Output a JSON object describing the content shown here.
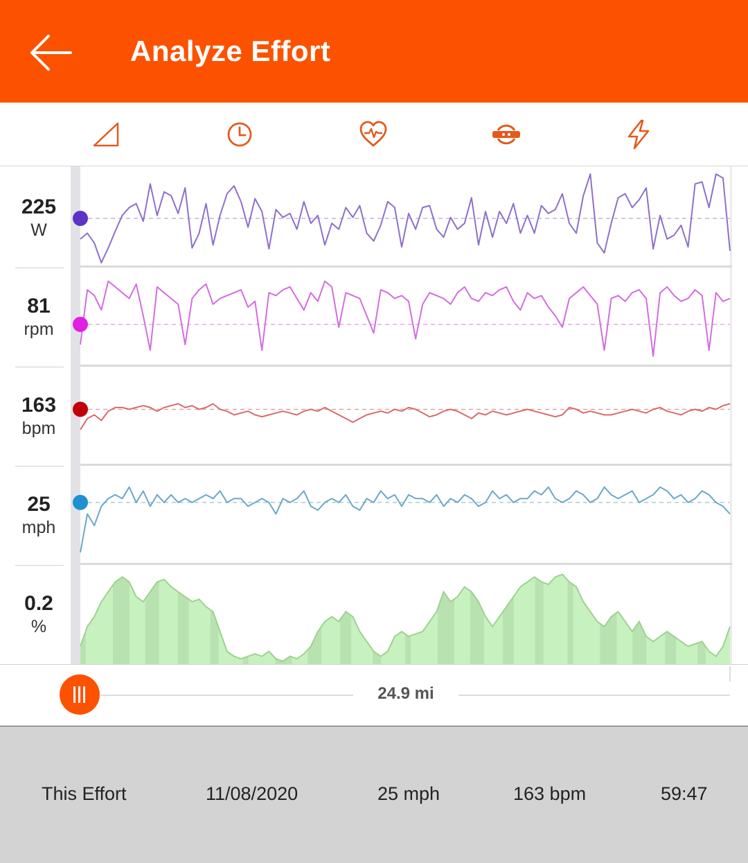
{
  "header": {
    "title": "Analyze Effort",
    "back_icon": "arrow-left-icon",
    "background_color": "#FC5200"
  },
  "tabs": [
    {
      "icon": "elevation-icon"
    },
    {
      "icon": "clock-icon"
    },
    {
      "icon": "heart-rate-icon"
    },
    {
      "icon": "cadence-icon"
    },
    {
      "icon": "power-icon"
    }
  ],
  "metrics": [
    {
      "value": "225",
      "unit": "W",
      "color": "#8E6FC9",
      "marker_color": "#5B33C7"
    },
    {
      "value": "81",
      "unit": "rpm",
      "color": "#D36CE0",
      "marker_color": "#E020E0"
    },
    {
      "value": "163",
      "unit": "bpm",
      "color": "#D96A6A",
      "marker_color": "#C0000A"
    },
    {
      "value": "25",
      "unit": "mph",
      "color": "#6AA8C8",
      "marker_color": "#1F90D0"
    },
    {
      "value": "0.2",
      "unit": "%",
      "color": "#A8D9A0",
      "marker_color": "#9BD28F"
    }
  ],
  "scrubber": {
    "distance_label": "24.9 mi",
    "handle_icon": "grip-handle-icon"
  },
  "footer": {
    "effort_label": "This Effort",
    "date": "11/08/2020",
    "speed": "25 mph",
    "heart_rate": "163 bpm",
    "time": "59:47"
  },
  "chart_data": {
    "type": "line",
    "series": [
      {
        "values": [
          204,
          210,
          200,
          180,
          195,
          212,
          228,
          236,
          240,
          222,
          260,
          228,
          252,
          248,
          230,
          256,
          195,
          210,
          240,
          198,
          228,
          250,
          258,
          242,
          216,
          245,
          232,
          194,
          234,
          226,
          230,
          214,
          242,
          220,
          228,
          198,
          220,
          214,
          236,
          226,
          238,
          210,
          202,
          218,
          242,
          236,
          196,
          230,
          214,
          236,
          238,
          214,
          206,
          226,
          214,
          220,
          246,
          198,
          232,
          206,
          232,
          220,
          240,
          210,
          228,
          210,
          238,
          230,
          234,
          250,
          220,
          210,
          248,
          270,
          200,
          190,
          220,
          246,
          250,
          236,
          244,
          256,
          194,
          228,
          204,
          208,
          218,
          196,
          260,
          262,
          236,
          270,
          266,
          192
        ]
      },
      {
        "values": [
          74,
          93,
          91,
          86,
          96,
          94,
          92,
          90,
          95,
          84,
          72,
          94,
          92,
          90,
          88,
          74,
          90,
          93,
          95,
          88,
          90,
          91,
          92,
          93,
          87,
          89,
          72,
          92,
          91,
          93,
          94,
          90,
          86,
          92,
          89,
          96,
          94,
          80,
          92,
          91,
          90,
          84,
          78,
          93,
          92,
          90,
          91,
          89,
          76,
          88,
          92,
          91,
          90,
          88,
          92,
          94,
          90,
          89,
          92,
          91,
          93,
          94,
          89,
          86,
          92,
          90,
          91,
          87,
          84,
          80,
          90,
          92,
          94,
          91,
          88,
          72,
          90,
          91,
          89,
          92,
          93,
          90,
          70,
          92,
          94,
          91,
          89,
          90,
          93,
          91,
          72,
          92,
          89,
          90
        ]
      },
      {
        "values": [
          152,
          158,
          160,
          157,
          162,
          164,
          164,
          163,
          164,
          165,
          164,
          162,
          164,
          165,
          166,
          164,
          165,
          163,
          164,
          166,
          163,
          162,
          160,
          161,
          162,
          160,
          159,
          160,
          161,
          162,
          161,
          160,
          162,
          163,
          162,
          164,
          162,
          160,
          158,
          156,
          158,
          160,
          161,
          162,
          161,
          163,
          162,
          164,
          163,
          161,
          159,
          160,
          162,
          163,
          162,
          160,
          158,
          161,
          160,
          162,
          161,
          160,
          161,
          162,
          163,
          162,
          161,
          160,
          159,
          160,
          164,
          163,
          161,
          162,
          161,
          160,
          160,
          161,
          162,
          163,
          162,
          161,
          163,
          164,
          162,
          161,
          160,
          162,
          163,
          162,
          164,
          163,
          165,
          166
        ]
      },
      {
        "values": [
          12,
          22,
          19,
          24,
          26,
          27,
          26,
          29,
          25,
          28,
          24,
          27,
          25,
          27,
          25,
          26,
          25,
          26,
          27,
          26,
          28,
          25,
          26,
          26,
          24,
          25,
          26,
          25,
          22,
          26,
          25,
          26,
          28,
          24,
          23,
          25,
          26,
          25,
          27,
          24,
          23,
          26,
          25,
          28,
          26,
          27,
          24,
          27,
          26,
          26,
          25,
          27,
          24,
          26,
          25,
          27,
          26,
          24,
          25,
          28,
          26,
          27,
          25,
          26,
          26,
          28,
          27,
          29,
          26,
          25,
          26,
          28,
          27,
          25,
          26,
          29,
          27,
          26,
          27,
          28,
          25,
          26,
          27,
          29,
          28,
          26,
          27,
          25,
          26,
          28,
          27,
          25,
          24,
          22
        ]
      },
      {
        "values": [
          0.3,
          0.7,
          0.9,
          1.2,
          1.4,
          1.6,
          1.7,
          1.6,
          1.3,
          1.2,
          1.4,
          1.6,
          1.65,
          1.5,
          1.4,
          1.3,
          1.2,
          1.25,
          1.1,
          1.0,
          0.6,
          0.2,
          0.1,
          0.05,
          0.1,
          0.15,
          0.1,
          0.2,
          0.05,
          0.0,
          0.1,
          0.05,
          0.15,
          0.3,
          0.6,
          0.8,
          0.9,
          0.8,
          1.0,
          0.9,
          0.6,
          0.4,
          0.2,
          0.1,
          0.2,
          0.5,
          0.6,
          0.5,
          0.55,
          0.6,
          0.8,
          1.0,
          1.4,
          1.2,
          1.3,
          1.5,
          1.4,
          1.2,
          0.9,
          0.7,
          0.9,
          1.1,
          1.3,
          1.5,
          1.6,
          1.7,
          1.6,
          1.55,
          1.7,
          1.75,
          1.6,
          1.5,
          1.2,
          1.0,
          0.8,
          0.7,
          0.9,
          1.0,
          0.8,
          0.6,
          0.8,
          0.5,
          0.4,
          0.5,
          0.6,
          0.5,
          0.4,
          0.3,
          0.35,
          0.4,
          0.2,
          0.1,
          0.3,
          0.7
        ]
      }
    ],
    "x_label": "",
    "y_label": "",
    "grid": false,
    "xlim_distance": [
      0,
      24.9
    ]
  }
}
